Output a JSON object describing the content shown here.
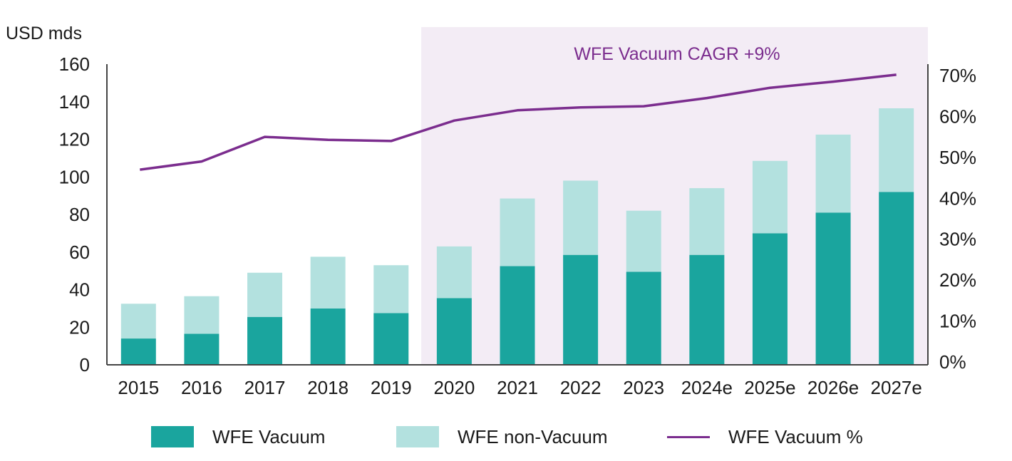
{
  "chart_data": {
    "type": "bar",
    "stacked": true,
    "categories": [
      "2015",
      "2016",
      "2017",
      "2018",
      "2019",
      "2020",
      "2021",
      "2022",
      "2023",
      "2024e",
      "2025e",
      "2026e",
      "2027e"
    ],
    "series": [
      {
        "name": "WFE Vacuum",
        "kind": "bar",
        "axis": "left",
        "color": "#1aa59e",
        "values": [
          14,
          16.5,
          25.5,
          30,
          27.5,
          35.5,
          52.5,
          58.5,
          49.5,
          58.5,
          70,
          81,
          92
        ]
      },
      {
        "name": "WFE non-Vacuum",
        "kind": "bar",
        "axis": "left",
        "color": "#b3e1df",
        "values": [
          18.5,
          20,
          23.5,
          27.5,
          25.5,
          27.5,
          36,
          39.5,
          32.5,
          35.5,
          38.5,
          41.5,
          44.5
        ]
      },
      {
        "name": "WFE Vacuum %",
        "kind": "line",
        "axis": "right",
        "color": "#7b2d8e",
        "values": [
          47,
          49,
          55,
          54.3,
          54,
          59,
          61.5,
          62.2,
          62.5,
          64.5,
          67,
          68.5,
          70.2
        ]
      }
    ],
    "ylabel": "USD mds",
    "ylim": [
      0,
      160
    ],
    "yticks": [
      0,
      20,
      40,
      60,
      80,
      100,
      120,
      140,
      160
    ],
    "y2lim": [
      0,
      70
    ],
    "y2ticks": [
      "0%",
      "10%",
      "20%",
      "30%",
      "40%",
      "50%",
      "60%",
      "70%"
    ],
    "y2tick_values": [
      0,
      10,
      20,
      30,
      40,
      50,
      60,
      70
    ],
    "shaded_region": {
      "from": "2020",
      "to": "2027e",
      "color": "#f3ecf5"
    },
    "annotation": {
      "text": "WFE Vacuum CAGR +9%",
      "color": "#7b2d8e"
    },
    "grid": false,
    "legend": "bottom"
  },
  "legend": {
    "items": [
      {
        "label": "WFE Vacuum",
        "color": "#1aa59e",
        "marker": "box"
      },
      {
        "label": "WFE non-Vacuum",
        "color": "#b3e1df",
        "marker": "box"
      },
      {
        "label": "WFE Vacuum %",
        "color": "#7b2d8e",
        "marker": "line"
      }
    ]
  }
}
